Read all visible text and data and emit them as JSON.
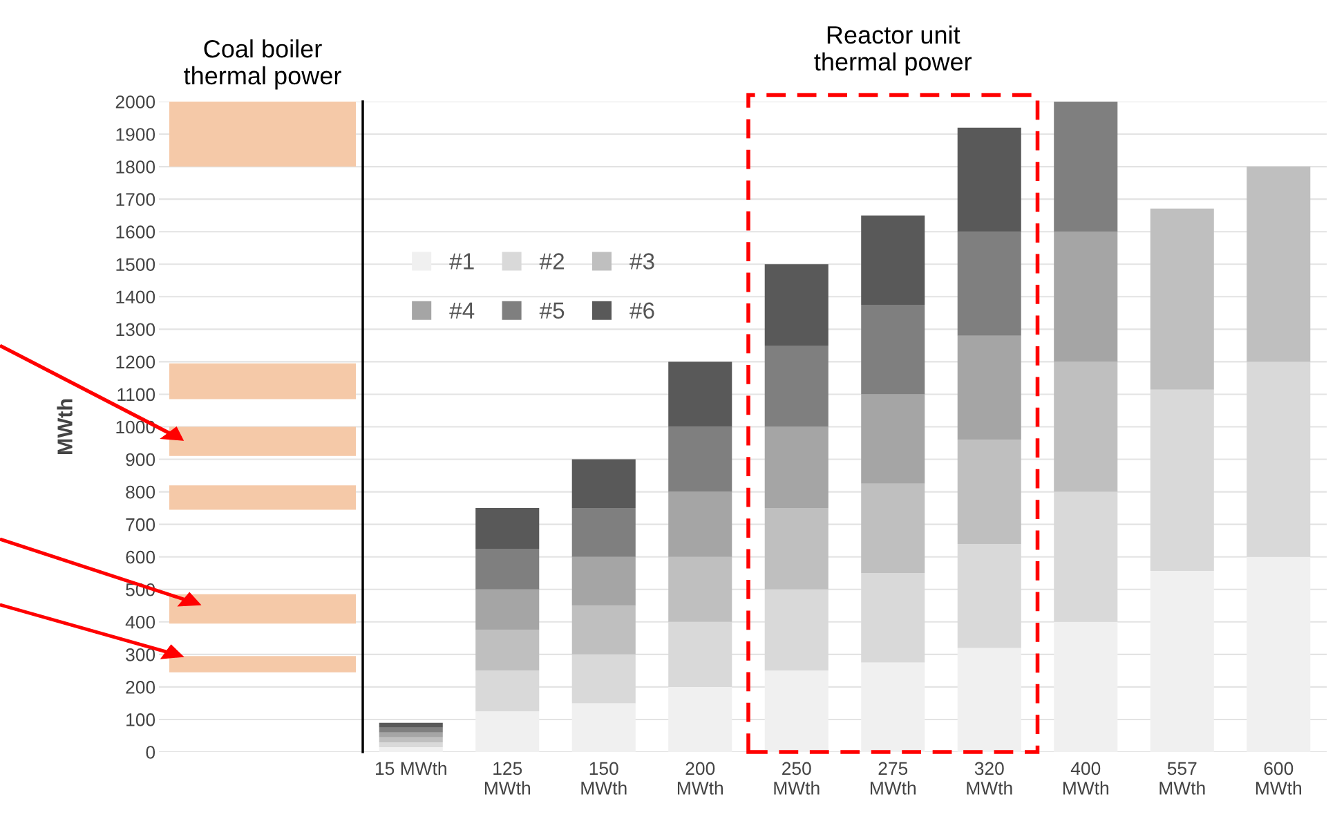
{
  "chart_data": [
    {
      "type": "bar",
      "title": "Coal boiler\nthermal power",
      "ylabel": "MWth",
      "categories": [
        null
      ],
      "ylim": [
        0,
        2000
      ],
      "yticks": [
        0,
        100,
        200,
        300,
        400,
        500,
        600,
        700,
        800,
        900,
        1000,
        1100,
        1200,
        1300,
        1400,
        1500,
        1600,
        1700,
        1800,
        1900,
        2000
      ],
      "grid": "y",
      "tick_labels": "y",
      "legend": false,
      "series": [
        {
          "color": "#f5c9a8",
          "values": [
            200
          ],
          "base": [
            1800
          ]
        },
        {
          "color": "#f5c9a8",
          "values": [
            110
          ],
          "base": [
            1085
          ]
        },
        {
          "color": "#f5c9a8",
          "values": [
            90
          ],
          "base": [
            910
          ]
        },
        {
          "color": "#f5c9a8",
          "values": [
            75
          ],
          "base": [
            745
          ]
        },
        {
          "color": "#f5c9a8",
          "values": [
            90
          ],
          "base": [
            395
          ]
        },
        {
          "color": "#f5c9a8",
          "values": [
            50
          ],
          "base": [
            245
          ]
        }
      ]
    },
    {
      "type": "bar",
      "stacked": true,
      "categories": [
        "15 MWth",
        "125\nMWth",
        "150\nMWth",
        "200\nMWth",
        "250\nMWth",
        "275\nMWth",
        "320\nMWth",
        "400\nMWth",
        "557\nMWth",
        "600\nMWth"
      ],
      "ylim": [
        0,
        2000
      ],
      "yticks": [
        0,
        100,
        200,
        300,
        400,
        500,
        600,
        700,
        800,
        900,
        1000,
        1100,
        1200,
        1300,
        1400,
        1500,
        1600,
        1700,
        1800,
        1900,
        2000
      ],
      "grid": "y",
      "tick_labels": "x",
      "legend": "top left",
      "annotations": [
        "Reactor unit\nthermal power"
      ],
      "series": [
        {
          "name": "#1",
          "color": "#f0f0f0",
          "values": [
            15,
            125,
            150,
            200,
            250,
            275,
            320,
            400,
            557,
            600
          ]
        },
        {
          "name": "#2",
          "color": "#d9d9d9",
          "values": [
            15,
            125,
            150,
            200,
            250,
            275,
            320,
            400,
            557,
            600
          ]
        },
        {
          "name": "#3",
          "color": "#bfbfbf",
          "values": [
            15,
            125,
            150,
            200,
            250,
            275,
            320,
            400,
            557,
            600
          ]
        },
        {
          "name": "#4",
          "color": "#a5a5a5",
          "values": [
            15,
            125,
            150,
            200,
            250,
            275,
            320,
            400,
            null,
            null
          ]
        },
        {
          "name": "#5",
          "color": "#7f7f7f",
          "values": [
            15,
            125,
            150,
            200,
            250,
            275,
            320,
            400,
            null,
            null
          ]
        },
        {
          "name": "#6",
          "color": "#595959",
          "values": [
            15,
            125,
            150,
            200,
            250,
            275,
            320,
            null,
            null,
            null
          ]
        }
      ]
    }
  ]
}
